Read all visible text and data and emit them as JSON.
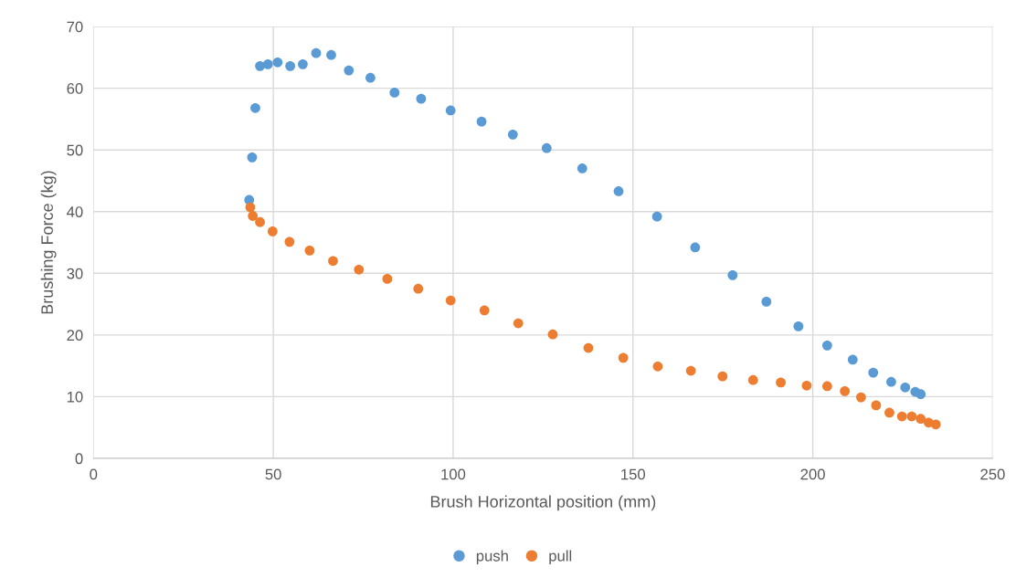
{
  "chart_data": {
    "type": "scatter",
    "xlabel": "Brush Horizontal position (mm)",
    "ylabel": "Brushing Force (kg)",
    "xlim": [
      0,
      250
    ],
    "xticks": [
      0,
      50,
      100,
      150,
      200,
      250
    ],
    "ylim": [
      0,
      70
    ],
    "yticks": [
      0,
      10,
      20,
      30,
      40,
      50,
      60,
      70
    ],
    "grid": true,
    "legend": "bottom",
    "marker": "circle",
    "series": [
      {
        "name": "push",
        "color": "#5b9bd5",
        "x": [
          43.3,
          44.1,
          45.0,
          46.3,
          48.5,
          51.2,
          54.7,
          58.2,
          61.9,
          66.1,
          71.0,
          77.0,
          83.7,
          91.1,
          99.3,
          107.9,
          116.6,
          126.0,
          135.9,
          146.0,
          156.7,
          167.3,
          177.7,
          187.1,
          196.0,
          204.0,
          211.1,
          216.8,
          221.8,
          225.7,
          228.5,
          230.0
        ],
        "values": [
          41.9,
          48.8,
          56.8,
          63.6,
          63.9,
          64.2,
          63.6,
          63.9,
          65.7,
          65.4,
          62.9,
          61.7,
          59.3,
          58.3,
          56.4,
          54.6,
          52.5,
          50.3,
          47.0,
          43.3,
          39.2,
          34.2,
          29.7,
          25.4,
          21.4,
          18.3,
          16.0,
          13.9,
          12.4,
          11.5,
          10.8,
          10.4
        ]
      },
      {
        "name": "pull",
        "color": "#ed7d31",
        "x": [
          43.6,
          44.3,
          46.3,
          49.8,
          54.5,
          60.1,
          66.6,
          73.8,
          81.7,
          90.3,
          99.3,
          108.7,
          118.1,
          127.7,
          137.6,
          147.3,
          156.9,
          166.1,
          174.9,
          183.4,
          191.1,
          198.3,
          204.0,
          208.9,
          213.4,
          217.6,
          221.3,
          224.8,
          227.5,
          230.0,
          232.2,
          234.2
        ],
        "values": [
          40.7,
          39.3,
          38.3,
          36.8,
          35.1,
          33.7,
          32.0,
          30.6,
          29.1,
          27.5,
          25.6,
          24.0,
          21.9,
          20.1,
          17.9,
          16.3,
          14.9,
          14.2,
          13.3,
          12.7,
          12.3,
          11.8,
          11.7,
          10.9,
          9.9,
          8.6,
          7.4,
          6.8,
          6.8,
          6.4,
          5.8,
          5.5
        ]
      }
    ]
  }
}
